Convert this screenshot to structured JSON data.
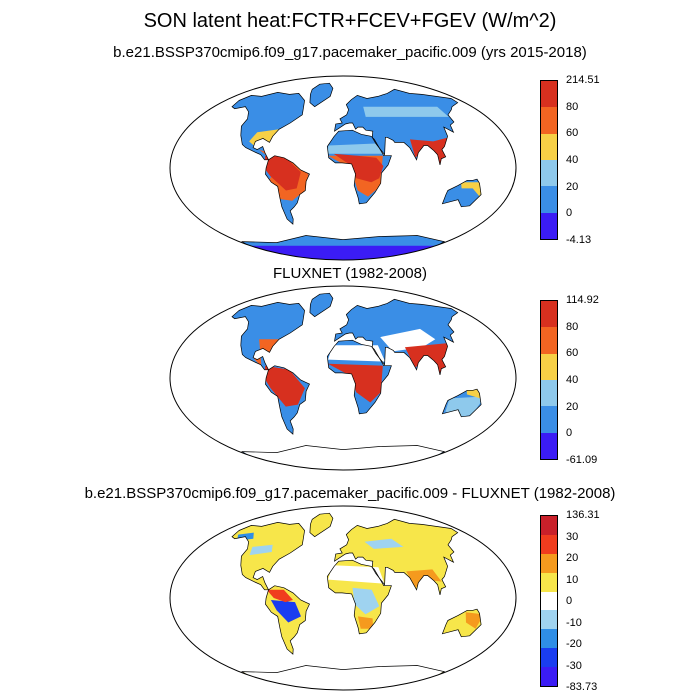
{
  "figure": {
    "title": "SON latent heat:FCTR+FCEV+FGEV (W/m^2)"
  },
  "colors": {
    "ocean": "#ffffff",
    "outline": "#000000",
    "coast": "#000000"
  },
  "panels": [
    {
      "title": "b.e21.BSSP370cmip6.f09_g17.pacemaker_pacific.009 (yrs 2015-2018)",
      "colorbar": {
        "labels": [
          "214.51",
          "80",
          "60",
          "40",
          "20",
          "0",
          "-4.13"
        ],
        "colors": [
          "#d7301f",
          "#f26522",
          "#f7d046",
          "#8ec9ec",
          "#3a8ee6",
          "#3b1cf5"
        ]
      }
    },
    {
      "title": "FLUXNET (1982-2008)",
      "colorbar": {
        "labels": [
          "114.92",
          "80",
          "60",
          "40",
          "20",
          "0",
          "-61.09"
        ],
        "colors": [
          "#d7301f",
          "#f26522",
          "#f7d046",
          "#8ec9ec",
          "#3a8ee6",
          "#3b1cf5"
        ]
      }
    },
    {
      "title": "b.e21.BSSP370cmip6.f09_g17.pacemaker_pacific.009 - FLUXNET (1982-2008)",
      "colorbar": {
        "labels": [
          "136.31",
          "30",
          "20",
          "10",
          "0",
          "-10",
          "-20",
          "-30",
          "-83.73"
        ],
        "colors": [
          "#c9202a",
          "#f03c1e",
          "#f59a1e",
          "#f7e64a",
          "#ffffff",
          "#9fd3f0",
          "#2f8ee6",
          "#1a3df0",
          "#3b1cf5"
        ]
      }
    }
  ]
}
